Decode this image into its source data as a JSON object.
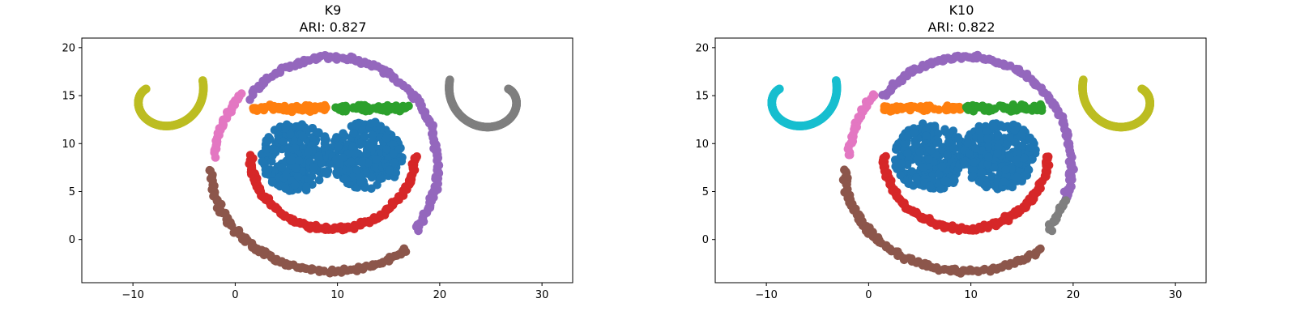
{
  "palette": [
    "#1f77b4",
    "#ff7f0e",
    "#2ca02c",
    "#d62728",
    "#9467bd",
    "#8c564b",
    "#e377c2",
    "#7f7f7f",
    "#bcbd22",
    "#17becf"
  ],
  "chart_data": [
    {
      "type": "scatter",
      "title": "K9",
      "subtitle": "ARI: 0.827",
      "xlabel": "",
      "ylabel": "",
      "xlim": [
        -15,
        33
      ],
      "ylim": [
        -4.5,
        21
      ],
      "xticks": [
        -10,
        0,
        10,
        20,
        30
      ],
      "yticks": [
        0,
        5,
        10,
        15,
        20
      ],
      "xtick_labels": [
        "−10",
        "0",
        "10",
        "20",
        "30"
      ],
      "ytick_labels": [
        "0",
        "5",
        "10",
        "15",
        "20"
      ],
      "grid": false,
      "clusters": [
        {
          "color": "#1f77b4",
          "shape": "blob",
          "cx": 6,
          "cy": 8.6,
          "rx": 3.5,
          "ry": 3.6
        },
        {
          "color": "#1f77b4",
          "shape": "blob",
          "cx": 12.8,
          "cy": 8.8,
          "rx": 3.6,
          "ry": 3.6
        },
        {
          "color": "#ff7f0e",
          "shape": "band",
          "x0": 1.5,
          "x1": 9,
          "y": 13.7
        },
        {
          "color": "#2ca02c",
          "shape": "band",
          "x0": 9.5,
          "x1": 17,
          "y": 13.7
        },
        {
          "color": "#d62728",
          "shape": "arc",
          "cx": 9.5,
          "cy": 8.7,
          "rx": 8,
          "ry": 7.6,
          "a0": 180,
          "a1": 360
        },
        {
          "color": "#9467bd",
          "shape": "arc",
          "cx": 9.5,
          "cy": 7.9,
          "rx": 10.3,
          "ry": 11.1,
          "a0": -38,
          "a1": 141
        },
        {
          "color": "#e377c2",
          "shape": "arc",
          "cx": 9.5,
          "cy": 7.9,
          "rx": 11.5,
          "ry": 11.5,
          "a0": 141,
          "a1": 176
        },
        {
          "color": "#8c564b",
          "shape": "arc",
          "cx": 9.5,
          "cy": 7.2,
          "rx": 11.8,
          "ry": 10.5,
          "a0": 180,
          "a1": 308
        },
        {
          "color": "#bcbd22",
          "shape": "spiral",
          "cx": -7.5,
          "cy": 15,
          "rmin": 1.4,
          "rmax": 4.6,
          "a0": 150,
          "a1": 380,
          "dir": -1
        },
        {
          "color": "#7f7f7f",
          "shape": "spiral",
          "cx": 25.5,
          "cy": 15,
          "rmin": 1.4,
          "rmax": 4.8,
          "a0": 30,
          "a1": -200,
          "dir": 1
        }
      ]
    },
    {
      "type": "scatter",
      "title": "K10",
      "subtitle": "ARI: 0.822",
      "xlabel": "",
      "ylabel": "",
      "xlim": [
        -15,
        33
      ],
      "ylim": [
        -4.5,
        21
      ],
      "xticks": [
        -10,
        0,
        10,
        20,
        30
      ],
      "yticks": [
        0,
        5,
        10,
        15,
        20
      ],
      "xtick_labels": [
        "−10",
        "0",
        "10",
        "20",
        "30"
      ],
      "ytick_labels": [
        "0",
        "5",
        "10",
        "15",
        "20"
      ],
      "grid": false,
      "clusters": [
        {
          "color": "#1f77b4",
          "shape": "blob",
          "cx": 6,
          "cy": 8.6,
          "rx": 3.5,
          "ry": 3.6
        },
        {
          "color": "#1f77b4",
          "shape": "blob",
          "cx": 12.8,
          "cy": 8.8,
          "rx": 3.6,
          "ry": 3.6
        },
        {
          "color": "#ff7f0e",
          "shape": "band",
          "x0": 1.5,
          "x1": 9,
          "y": 13.7
        },
        {
          "color": "#2ca02c",
          "shape": "band",
          "x0": 9.5,
          "x1": 17,
          "y": 13.7
        },
        {
          "color": "#d62728",
          "shape": "arc",
          "cx": 9.5,
          "cy": 8.7,
          "rx": 8,
          "ry": 7.6,
          "a0": 180,
          "a1": 360
        },
        {
          "color": "#9467bd",
          "shape": "arc",
          "cx": 9.5,
          "cy": 7.9,
          "rx": 10.3,
          "ry": 11.1,
          "a0": -20,
          "a1": 141
        },
        {
          "color": "#7f7f7f",
          "shape": "arc",
          "cx": 9.5,
          "cy": 7.9,
          "rx": 10.3,
          "ry": 11.1,
          "a0": -38,
          "a1": -20
        },
        {
          "color": "#e377c2",
          "shape": "arc",
          "cx": 9.5,
          "cy": 7.9,
          "rx": 11.5,
          "ry": 11.5,
          "a0": 141,
          "a1": 176
        },
        {
          "color": "#8c564b",
          "shape": "arc",
          "cx": 9.5,
          "cy": 7.2,
          "rx": 11.8,
          "ry": 10.5,
          "a0": 180,
          "a1": 308
        },
        {
          "color": "#17becf",
          "shape": "spiral",
          "cx": -7.5,
          "cy": 15,
          "rmin": 1.4,
          "rmax": 4.6,
          "a0": 150,
          "a1": 380,
          "dir": -1
        },
        {
          "color": "#bcbd22",
          "shape": "spiral",
          "cx": 25.5,
          "cy": 15,
          "rmin": 1.4,
          "rmax": 4.8,
          "a0": 30,
          "a1": -200,
          "dir": 1
        }
      ]
    }
  ]
}
